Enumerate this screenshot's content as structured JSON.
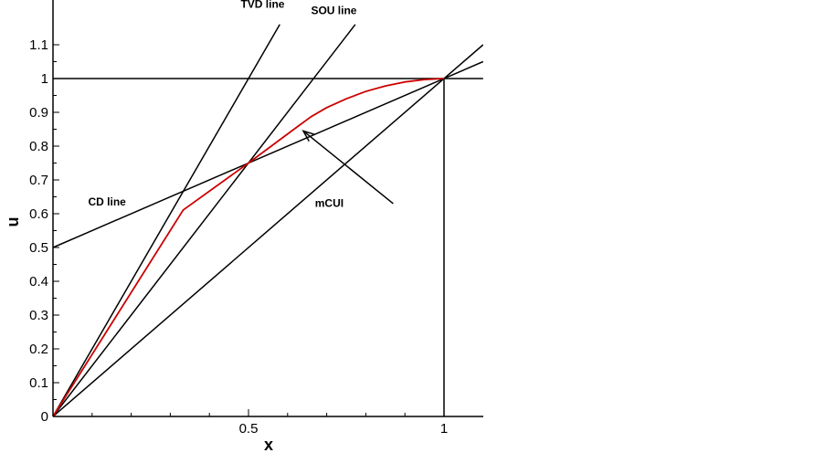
{
  "chart_data": {
    "type": "line",
    "title": "",
    "xlabel": "x",
    "ylabel": "u",
    "xlim": [
      0,
      1.1
    ],
    "ylim": [
      0,
      1.15
    ],
    "x_ticks": [
      0.5,
      1
    ],
    "x_tick_labels": [
      "0.5",
      "1"
    ],
    "x_minor_ticks": [
      0.1,
      0.2,
      0.3,
      0.4,
      0.6,
      0.7,
      0.8,
      0.9
    ],
    "y_ticks": [
      0,
      0.1,
      0.2,
      0.3,
      0.4,
      0.5,
      0.6,
      0.7,
      0.8,
      0.9,
      1,
      1.1
    ],
    "y_tick_labels": [
      "0",
      "0.1",
      "0.2",
      "0.3",
      "0.4",
      "0.5",
      "0.6",
      "0.7",
      "0.8",
      "0.9",
      "1",
      "1.1"
    ],
    "grid": false,
    "series": [
      {
        "name": "TVD line",
        "color": "#000000",
        "x": [
          0,
          0.58
        ],
        "y": [
          0,
          1.16
        ]
      },
      {
        "name": "SOU line",
        "color": "#000000",
        "x": [
          0,
          0.773
        ],
        "y": [
          0,
          1.16
        ]
      },
      {
        "name": "CD line",
        "color": "#000000",
        "x": [
          0,
          1.1
        ],
        "y": [
          0.5,
          1.05
        ]
      },
      {
        "color": "#000000",
        "x": [
          0,
          1.1
        ],
        "y": [
          0,
          1.1
        ]
      },
      {
        "color": "#000000",
        "x": [
          0,
          1.1
        ],
        "y": [
          1,
          1
        ]
      },
      {
        "color": "#000000",
        "x": [
          1,
          1
        ],
        "y": [
          0,
          1
        ]
      },
      {
        "name": "mCUI",
        "color": "#cc0000",
        "x": [
          0,
          0.333,
          0.5,
          0.625,
          0.66,
          0.7,
          0.75,
          0.8,
          0.85,
          0.9,
          0.95,
          1.0
        ],
        "y": [
          0,
          0.611,
          0.75,
          0.8575,
          0.887,
          0.914,
          0.94,
          0.962,
          0.978,
          0.99,
          0.997,
          1.0
        ]
      }
    ],
    "annotations": [
      {
        "text": "TVD line",
        "x": 0.48,
        "y": 1.21
      },
      {
        "text": "SOU line",
        "x": 0.66,
        "y": 1.19
      },
      {
        "text": "CD line",
        "x": 0.09,
        "y": 0.625
      },
      {
        "text": "mCUI",
        "x": 0.67,
        "y": 0.62
      }
    ],
    "arrow": {
      "from": [
        0.87,
        0.63
      ],
      "to": [
        0.64,
        0.845
      ]
    }
  }
}
